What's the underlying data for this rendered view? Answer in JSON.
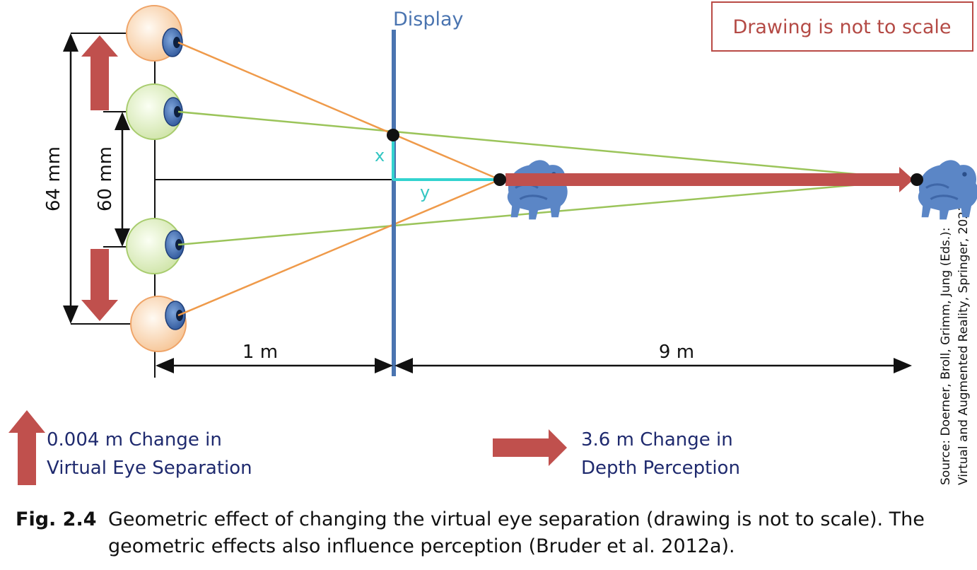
{
  "diagram": {
    "display_label": "Display",
    "note": "Drawing is not to scale",
    "outer_separation_label": "64 mm",
    "inner_separation_label": "60 mm",
    "x_label": "x",
    "y_label": "y",
    "distance_to_display_label": "1 m",
    "distance_display_to_object_label": "9 m",
    "legend_eye": {
      "line1": "0.004 m Change in",
      "line2": "Virtual Eye Separation"
    },
    "legend_depth": {
      "line1": "3.6 m Change in",
      "line2": "Depth Perception"
    },
    "source_line1": "Source: Doerner, Broll, Grimm, Jung (Eds.):",
    "source_line2": "Virtual and Augmented Reality, Springer, 2021",
    "icons": [
      "eye-icon",
      "bear-icon",
      "arrow-icon"
    ],
    "colors": {
      "display": "#4a74b0",
      "orange_rays": "#ef9a4a",
      "green_rays": "#9bc45a",
      "red_arrows": "#c0504d",
      "cyan": "#33d3cf",
      "legend_text": "#1f2a6e",
      "note_text": "#b44a45"
    }
  },
  "caption": {
    "figure_number": "Fig. 2.4",
    "text": "Geometric effect of changing the virtual eye separation (drawing is not to scale). The geometric effects also influence perception (Bruder et al. 2012a)."
  }
}
